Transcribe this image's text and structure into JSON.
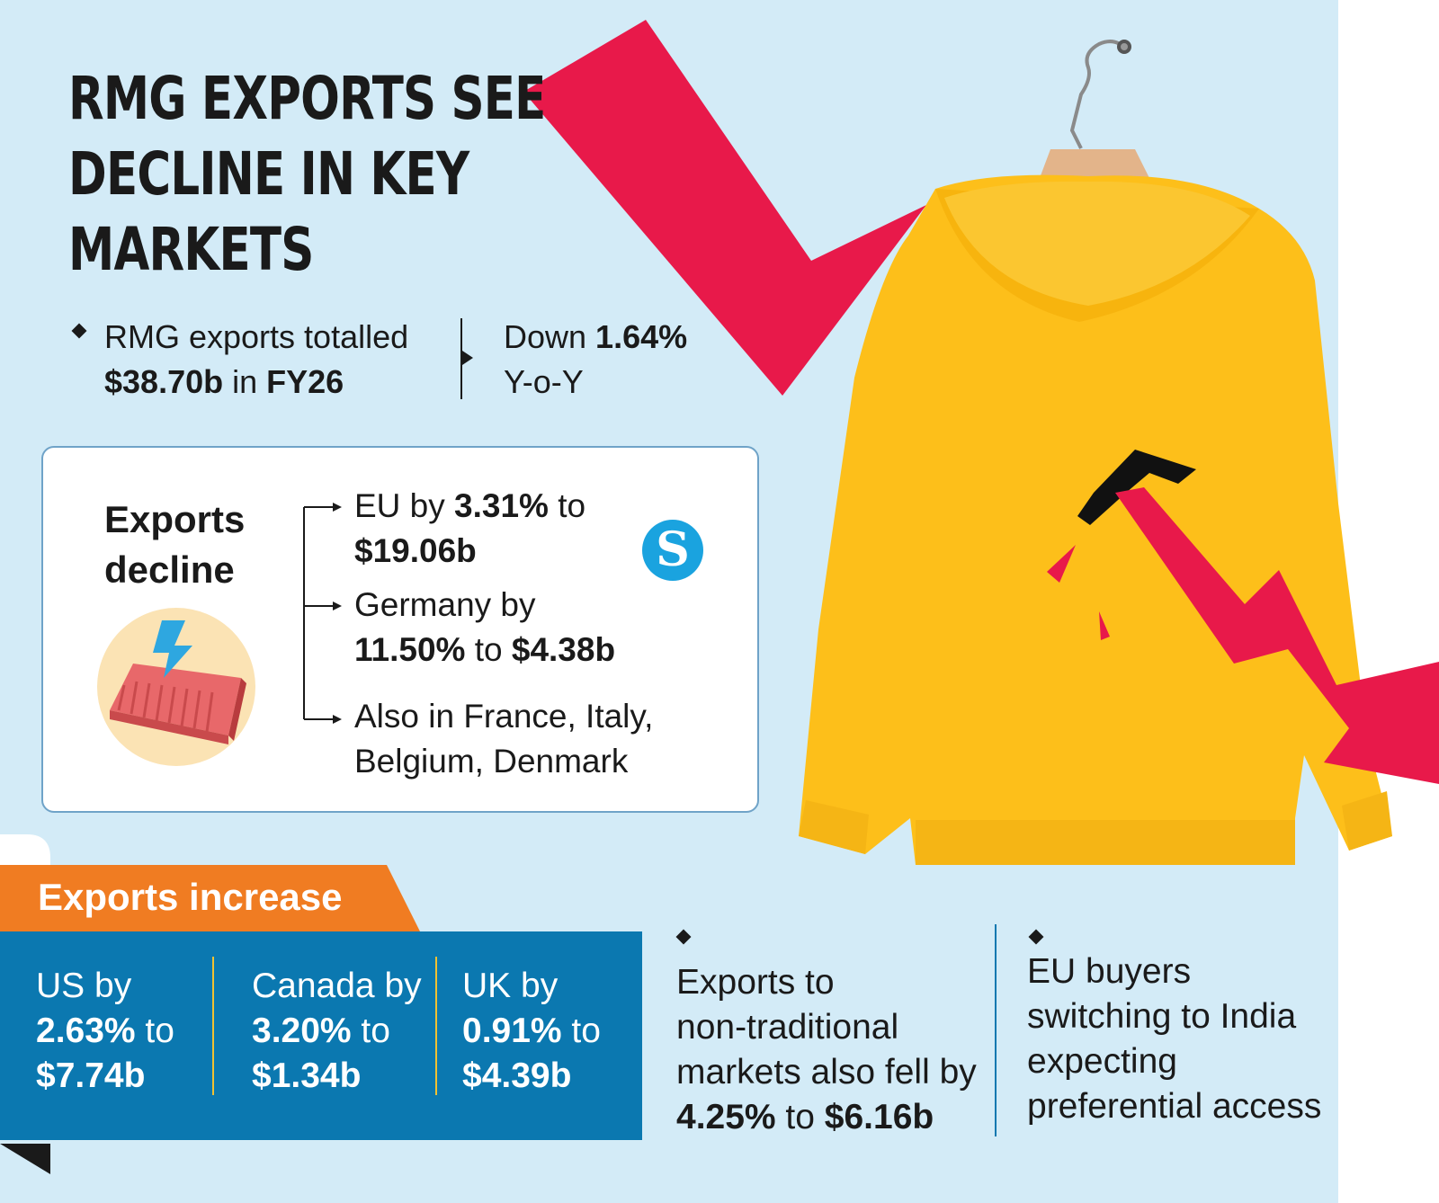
{
  "title": [
    "RMG EXPORTS SEE",
    "DECLINE IN KEY",
    "MARKETS"
  ],
  "summary": {
    "line1_text": "RMG exports totalled",
    "line2_value": "$38.70b",
    "line2_mid": " in ",
    "line2_period": "FY26"
  },
  "change": {
    "prefix": "Down ",
    "value": "1.64%",
    "line2": "Y-o-Y"
  },
  "decline_box": {
    "heading_line1": "Exports",
    "heading_line2": "decline",
    "items": [
      {
        "l1_pre": "EU by ",
        "l1_bold": "3.31%",
        "l1_post": " to",
        "l2_bold": "$19.06b",
        "l2_pre": "",
        "l2_post": ""
      },
      {
        "l1_pre": "Germany by",
        "l1_bold": "",
        "l1_post": "",
        "l2_bold": "11.50%",
        "l2_pre": "",
        "l2_post": " to ",
        "l2_bold2": "$4.38b"
      },
      {
        "l1_pre": "Also in France, Italy,",
        "l2_pre": "Belgium, Denmark"
      }
    ],
    "logo_letter": "S"
  },
  "increase": {
    "tab_label": "Exports increase",
    "columns": [
      {
        "line1": "US by",
        "pct": "2.63%",
        "to": " to",
        "value": "$7.74b"
      },
      {
        "line1": "Canada by",
        "pct": "3.20%",
        "to": " to",
        "value": "$1.34b"
      },
      {
        "line1": "UK by",
        "pct": "0.91%",
        "to": " to",
        "value": "$4.39b"
      }
    ]
  },
  "notes": [
    {
      "lines": [
        "Exports to",
        "non-traditional",
        "markets also fell by"
      ],
      "bold_pct": "4.25%",
      "to": " to ",
      "bold_value": "$6.16b"
    },
    {
      "lines": [
        "EU buyers",
        "switching to India",
        "expecting",
        "preferential access"
      ]
    }
  ],
  "colors": {
    "background": "#d3ebf7",
    "arrow_red": "#e8194a",
    "hoodie_yellow": "#fdbf1a",
    "orange_tab": "#f07c22",
    "blue_band": "#0b78b0",
    "divider_gold": "#f1c232"
  },
  "icons": [
    "down-arrow-icon",
    "shipping-container-icon",
    "hanger-icon",
    "daily-star-logo"
  ]
}
